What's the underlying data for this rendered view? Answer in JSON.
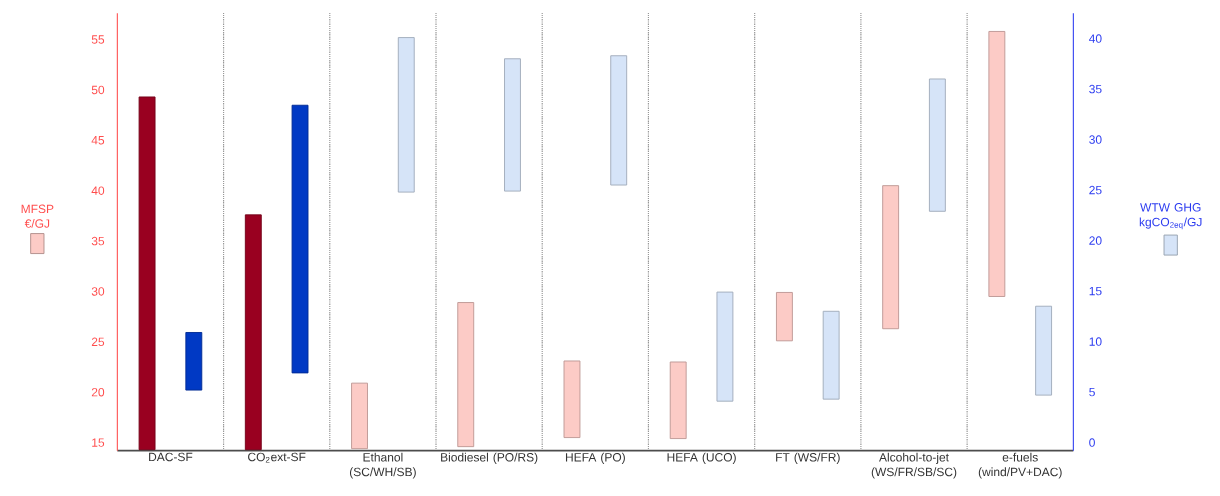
{
  "chart_data": {
    "type": "bar",
    "categories": [
      "DAC-SF",
      "CO$_{2}$ext-SF",
      "Ethanol (SC/WH/SB)",
      "Biodiesel (PO/RS)",
      "HEFA (PO)",
      "HEFA (UCO)",
      "FT (WS/FR)",
      "Alcohol-to-jet (WS/FR/SB/SC)",
      "e-fuels (wind/PV+DAC)"
    ],
    "ylabel": "MFSP €/GJ",
    "y2label": "WTW GHG kgCO$_{2eq}$/GJ",
    "ylim": [
      14.2,
      57.6
    ],
    "yticks": [
      15,
      20,
      25,
      30,
      35,
      40,
      45,
      50,
      55
    ],
    "y2lim": [
      -0.8,
      42.5
    ],
    "y2ticks": [
      0,
      5,
      10,
      15,
      20,
      25,
      30,
      35,
      40
    ],
    "grid": "x",
    "series": [
      {
        "values": [
          35.0,
          23.3,
          6.5,
          14.3,
          7.6,
          7.6,
          4.8,
          14.2,
          26.3
        ],
        "base": [
          14.3,
          14.3,
          14.4,
          14.6,
          15.5,
          15.4,
          25.1,
          26.3,
          29.5
        ],
        "colors": [
          "#990020",
          "#990020",
          "#fccbc6",
          "#fccbc6",
          "#fccbc6",
          "#fccbc6",
          "#fccbc6",
          "#fccbc6",
          "#fccbc6"
        ]
      },
      {
        "axis": "y2",
        "values": [
          5.7,
          26.5,
          15.3,
          13.1,
          12.8,
          10.8,
          8.7,
          13.1,
          8.8
        ],
        "base": [
          5.2,
          6.9,
          24.8,
          24.9,
          25.5,
          4.1,
          4.3,
          22.9,
          4.7
        ],
        "colors": [
          "#0039c4",
          "#0039c4",
          "#d6e4f8",
          "#d6e4f8",
          "#d6e4f8",
          "#d6e4f8",
          "#d6e4f8",
          "#d6e4f8",
          "#d6e4f8"
        ]
      }
    ]
  }
}
